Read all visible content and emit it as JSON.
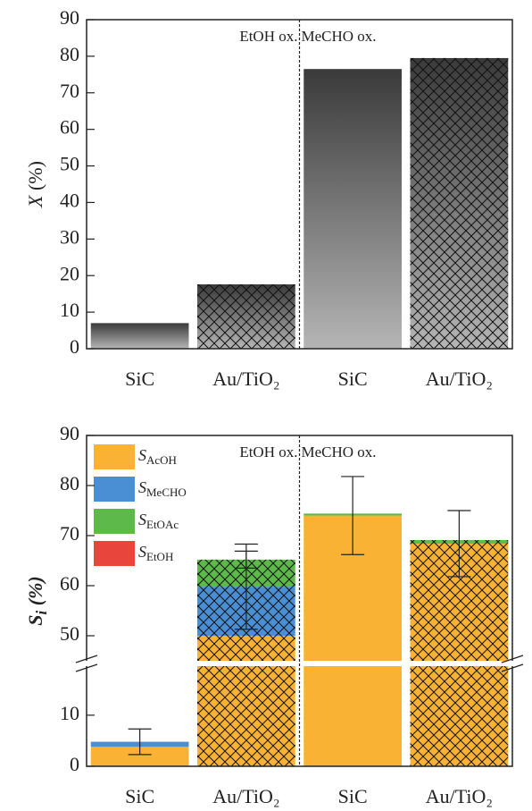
{
  "chart_data": [
    {
      "type": "bar",
      "ylabel": "X (%)",
      "categories": [
        "SiC",
        "Au/TiO₂",
        "SiC",
        "Au/TiO₂"
      ],
      "values": [
        7,
        17.6,
        76.5,
        79.5
      ],
      "color": "#3a3a3a",
      "hatch": [
        false,
        true,
        false,
        true
      ],
      "ylim": [
        0,
        90
      ],
      "yticks": [
        0,
        10,
        20,
        30,
        40,
        50,
        60,
        70,
        80,
        90
      ],
      "annotations": [
        "EtOH ox.",
        "MeCHO ox."
      ]
    },
    {
      "type": "stacked_bar",
      "ylabel": "Si (%)",
      "categories": [
        "SiC",
        "Au/TiO₂",
        "SiC",
        "Au/TiO₂"
      ],
      "series": [
        {
          "name": "SAcOH",
          "color": "#f9b233",
          "values": [
            3.8,
            50,
            74,
            68.4
          ],
          "errors": [
            null,
            null,
            7.8,
            6.6
          ]
        },
        {
          "name": "SMeCHO",
          "color": "#4a8fd4",
          "values": [
            1.0,
            9.8,
            0,
            0
          ],
          "errors": [
            2.5,
            8.5,
            null,
            null
          ]
        },
        {
          "name": "SEtOAc",
          "color": "#5dba4a",
          "values": [
            0,
            5.4,
            0.4,
            0.7
          ],
          "errors": [
            null,
            1.7,
            null,
            null
          ]
        },
        {
          "name": "SEtOH",
          "color": "#e8453c",
          "values": [
            0,
            0,
            0,
            0
          ],
          "errors": [
            null,
            null,
            null,
            null
          ]
        }
      ],
      "hatch": [
        false,
        true,
        false,
        true
      ],
      "ylim": [
        0,
        90
      ],
      "ybreak": [
        19.6,
        45
      ],
      "yticks": [
        0,
        10,
        50,
        60,
        70,
        80,
        90
      ],
      "annotations": [
        "EtOH ox.",
        "MeCHO ox."
      ],
      "legend": "upper left"
    }
  ]
}
